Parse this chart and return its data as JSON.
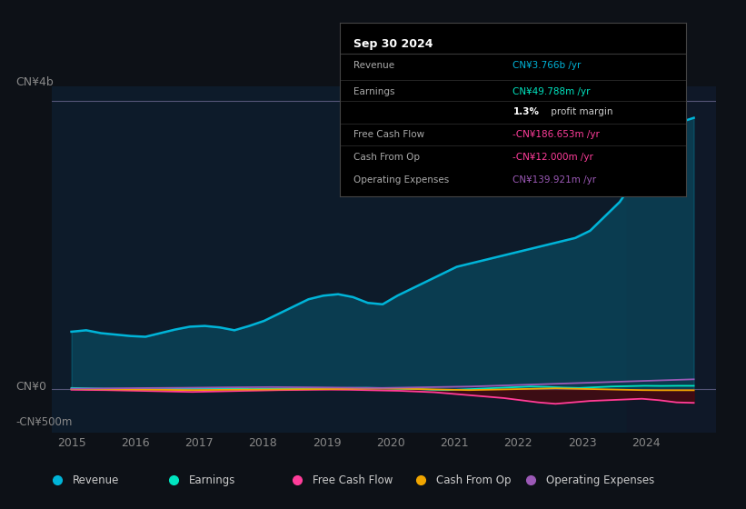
{
  "bg_color": "#0d1117",
  "plot_bg_color": "#0d1b2a",
  "legend_items": [
    {
      "label": "Revenue",
      "color": "#00b4d8"
    },
    {
      "label": "Earnings",
      "color": "#00e5c0"
    },
    {
      "label": "Free Cash Flow",
      "color": "#ff3d9a"
    },
    {
      "label": "Cash From Op",
      "color": "#f0a500"
    },
    {
      "label": "Operating Expenses",
      "color": "#9b59b6"
    }
  ],
  "revenue": [
    800,
    820,
    780,
    760,
    740,
    730,
    780,
    830,
    870,
    880,
    860,
    820,
    880,
    950,
    1050,
    1150,
    1250,
    1300,
    1320,
    1280,
    1200,
    1180,
    1300,
    1400,
    1500,
    1600,
    1700,
    1750,
    1800,
    1850,
    1900,
    1950,
    2000,
    2050,
    2100,
    2200,
    2400,
    2600,
    2900,
    3200,
    3500,
    3700,
    3766
  ],
  "earnings": [
    20,
    15,
    10,
    8,
    5,
    2,
    5,
    8,
    12,
    15,
    10,
    5,
    8,
    10,
    12,
    15,
    18,
    20,
    22,
    18,
    10,
    5,
    -5,
    -10,
    0,
    10,
    20,
    30,
    40,
    35,
    25,
    20,
    30,
    40,
    45,
    50,
    48,
    50,
    49.788
  ],
  "free_cash_flow": [
    -5,
    -8,
    -10,
    -15,
    -20,
    -25,
    -30,
    -35,
    -30,
    -25,
    -20,
    -15,
    -10,
    -8,
    -5,
    -3,
    -5,
    -10,
    -15,
    -20,
    -30,
    -40,
    -60,
    -80,
    -100,
    -120,
    -150,
    -180,
    -200,
    -180,
    -160,
    -150,
    -140,
    -130,
    -150,
    -180,
    -186.653
  ],
  "cash_from_op": [
    5,
    3,
    2,
    0,
    -2,
    -5,
    -8,
    -10,
    -8,
    -5,
    -3,
    -2,
    0,
    2,
    3,
    5,
    8,
    10,
    12,
    10,
    5,
    0,
    -5,
    -10,
    -5,
    0,
    5,
    10,
    15,
    10,
    5,
    0,
    -5,
    -10,
    -12,
    -12,
    -12
  ],
  "operating_expenses": [
    10,
    12,
    15,
    18,
    20,
    22,
    25,
    28,
    30,
    32,
    30,
    28,
    25,
    22,
    20,
    25,
    30,
    35,
    40,
    50,
    60,
    70,
    80,
    90,
    100,
    110,
    120,
    130,
    139.921
  ],
  "xtick_years": [
    2015,
    2016,
    2017,
    2018,
    2019,
    2020,
    2021,
    2022,
    2023,
    2024
  ],
  "xlim": [
    2014.7,
    2025.1
  ],
  "ylim": [
    -600,
    4200
  ],
  "shade_start": 2023.7,
  "info_box": {
    "title": "Sep 30 2024",
    "rows": [
      {
        "label": "Revenue",
        "value": "CN¥3.766b /yr",
        "value_color": "#00b4d8",
        "bold_prefix": ""
      },
      {
        "label": "Earnings",
        "value": "CN¥49.788m /yr",
        "value_color": "#00e5c0",
        "bold_prefix": ""
      },
      {
        "label": "",
        "value": " profit margin",
        "value_color": "#cccccc",
        "bold_prefix": "1.3%"
      },
      {
        "label": "Free Cash Flow",
        "value": "-CN¥186.653m /yr",
        "value_color": "#ff3d9a",
        "bold_prefix": ""
      },
      {
        "label": "Cash From Op",
        "value": "-CN¥12.000m /yr",
        "value_color": "#ff3d9a",
        "bold_prefix": ""
      },
      {
        "label": "Operating Expenses",
        "value": "CN¥139.921m /yr",
        "value_color": "#9b59b6",
        "bold_prefix": ""
      }
    ]
  }
}
